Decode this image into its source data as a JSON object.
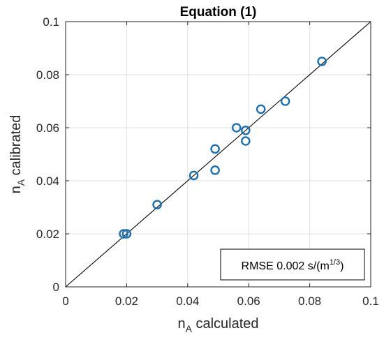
{
  "chart_data": {
    "type": "scatter",
    "title": "Equation (1)",
    "xlabel": {
      "main": "n",
      "sub": "A",
      "rest": " calculated"
    },
    "ylabel": {
      "main": "n",
      "sub": "A",
      "rest": " calibrated"
    },
    "xlim": [
      0,
      0.1
    ],
    "ylim": [
      0,
      0.1
    ],
    "xticks": [
      "0",
      "0.02",
      "0.04",
      "0.06",
      "0.08",
      "0.1"
    ],
    "yticks": [
      "0",
      "0.02",
      "0.04",
      "0.06",
      "0.08",
      "0.1"
    ],
    "grid": true,
    "marker": "open-circle",
    "marker_color": "#1f6faa",
    "reference_line": {
      "type": "y=x",
      "color": "#000000"
    },
    "points": [
      {
        "x": 0.019,
        "y": 0.02
      },
      {
        "x": 0.02,
        "y": 0.02
      },
      {
        "x": 0.03,
        "y": 0.031
      },
      {
        "x": 0.042,
        "y": 0.042
      },
      {
        "x": 0.049,
        "y": 0.052
      },
      {
        "x": 0.049,
        "y": 0.044
      },
      {
        "x": 0.056,
        "y": 0.06
      },
      {
        "x": 0.059,
        "y": 0.059
      },
      {
        "x": 0.059,
        "y": 0.055
      },
      {
        "x": 0.064,
        "y": 0.067
      },
      {
        "x": 0.072,
        "y": 0.07
      },
      {
        "x": 0.084,
        "y": 0.085
      }
    ],
    "annotation": {
      "prefix": "RMSE 0.002 s/(m",
      "superscript": "1/3",
      "suffix": ")",
      "placement": "bottom-right"
    }
  }
}
